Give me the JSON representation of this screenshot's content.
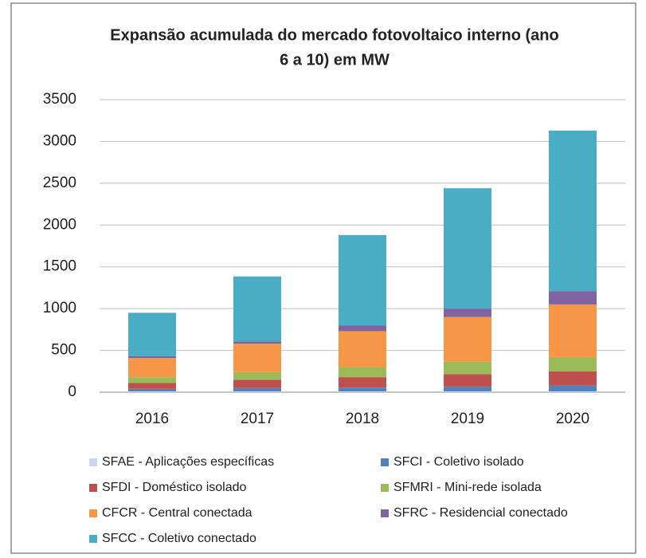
{
  "chart_data": {
    "type": "stacked_bar",
    "title_lines": [
      "Expansão acumulada do mercado fotovoltaico interno (ano",
      "6 a 10) em MW"
    ],
    "categories": [
      "2016",
      "2017",
      "2018",
      "2019",
      "2020"
    ],
    "series": [
      {
        "name": "SFAE - Aplicações específicas",
        "color": "#c6d9f1",
        "values": [
          10,
          10,
          10,
          10,
          10
        ]
      },
      {
        "name": "SFCI - Coletivo isolado",
        "color": "#4f81bd",
        "values": [
          30,
          40,
          45,
          55,
          70
        ]
      },
      {
        "name": "SFDI - Doméstico isolado",
        "color": "#c0504d",
        "values": [
          70,
          100,
          125,
          150,
          170
        ]
      },
      {
        "name": "SFMRI - Mini-rede isolada",
        "color": "#9bbb59",
        "values": [
          70,
          90,
          120,
          150,
          170
        ]
      },
      {
        "name": "CFCR - Central conectada",
        "color": "#f79646",
        "values": [
          230,
          340,
          430,
          535,
          630
        ]
      },
      {
        "name": "SFRC - Residencial conectado",
        "color": "#8064a2",
        "values": [
          20,
          25,
          70,
          100,
          160
        ]
      },
      {
        "name": "SFCC - Coletivo conectado",
        "color": "#4bacc6",
        "values": [
          520,
          780,
          1080,
          1440,
          1920
        ]
      }
    ],
    "ylim": [
      0,
      3500
    ],
    "yticks": [
      0,
      500,
      1000,
      1500,
      2000,
      2500,
      3000,
      3500
    ],
    "grid": true
  }
}
